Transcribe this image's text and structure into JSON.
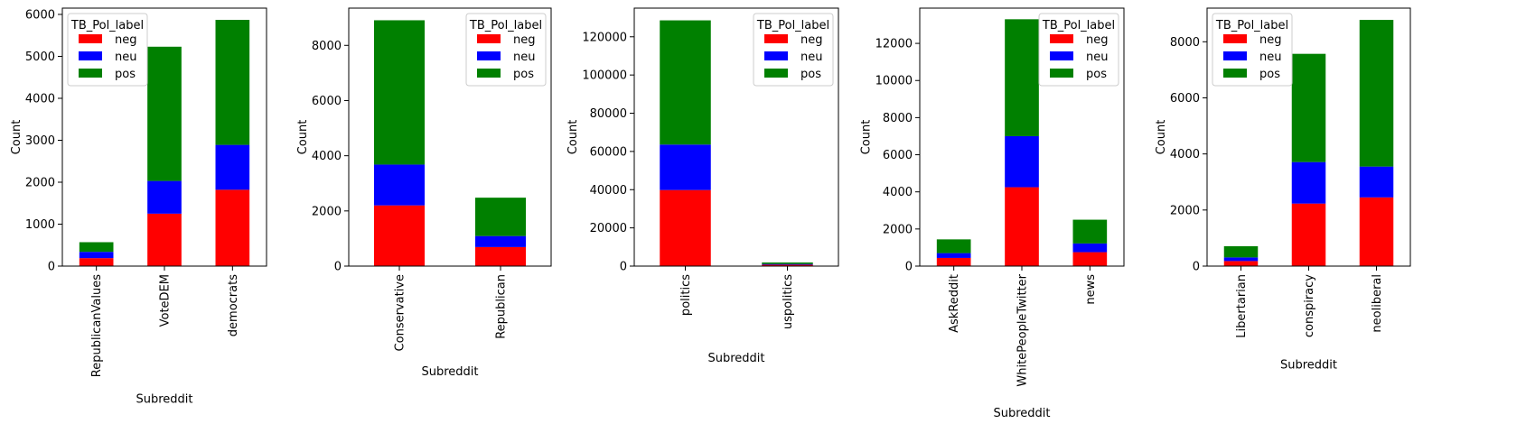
{
  "colors": {
    "neg": "#ff0000",
    "neu": "#0000ff",
    "pos": "#008000"
  },
  "chart_data": [
    {
      "type": "bar",
      "stacked": true,
      "categories": [
        "RepublicanValues",
        "VoteDEM",
        "democrats"
      ],
      "series": [
        {
          "name": "neg",
          "values": [
            190,
            1250,
            1820
          ]
        },
        {
          "name": "neu",
          "values": [
            150,
            780,
            1070
          ]
        },
        {
          "name": "pos",
          "values": [
            230,
            3200,
            2980
          ]
        }
      ],
      "xlabel": "Subreddit",
      "ylabel": "Count",
      "ylim": [
        0,
        6150
      ],
      "yticks": [
        0,
        1000,
        2000,
        3000,
        4000,
        5000,
        6000
      ],
      "legend_title": "TB_Pol_label",
      "legend_position": "upper-left"
    },
    {
      "type": "bar",
      "stacked": true,
      "categories": [
        "Conservative",
        "Republican"
      ],
      "series": [
        {
          "name": "neg",
          "values": [
            2200,
            690
          ]
        },
        {
          "name": "neu",
          "values": [
            1480,
            400
          ]
        },
        {
          "name": "pos",
          "values": [
            5230,
            1390
          ]
        }
      ],
      "xlabel": "Subreddit",
      "ylabel": "Count",
      "ylim": [
        0,
        9350
      ],
      "yticks": [
        0,
        2000,
        4000,
        6000,
        8000
      ],
      "legend_title": "TB_Pol_label",
      "legend_position": "upper-right"
    },
    {
      "type": "bar",
      "stacked": true,
      "categories": [
        "politics",
        "uspolitics"
      ],
      "series": [
        {
          "name": "neg",
          "values": [
            39800,
            700
          ]
        },
        {
          "name": "neu",
          "values": [
            23800,
            400
          ]
        },
        {
          "name": "pos",
          "values": [
            65000,
            800
          ]
        }
      ],
      "xlabel": "Subreddit",
      "ylabel": "Count",
      "ylim": [
        0,
        135000
      ],
      "yticks": [
        0,
        20000,
        40000,
        60000,
        80000,
        100000,
        120000
      ],
      "legend_title": "TB_Pol_label",
      "legend_position": "upper-right"
    },
    {
      "type": "bar",
      "stacked": true,
      "categories": [
        "AskReddit",
        "WhitePeopleTwitter",
        "news"
      ],
      "series": [
        {
          "name": "neg",
          "values": [
            440,
            4250,
            750
          ]
        },
        {
          "name": "neu",
          "values": [
            260,
            2750,
            470
          ]
        },
        {
          "name": "pos",
          "values": [
            740,
            6300,
            1280
          ]
        }
      ],
      "xlabel": "Subreddit",
      "ylabel": "Count",
      "ylim": [
        0,
        13900
      ],
      "yticks": [
        0,
        2000,
        4000,
        6000,
        8000,
        10000,
        12000
      ],
      "legend_title": "TB_Pol_label",
      "legend_position": "upper-right"
    },
    {
      "type": "bar",
      "stacked": true,
      "categories": [
        "Libertarian",
        "conspiracy",
        "neoliberal"
      ],
      "series": [
        {
          "name": "neg",
          "values": [
            180,
            2230,
            2450
          ]
        },
        {
          "name": "neu",
          "values": [
            130,
            1480,
            1100
          ]
        },
        {
          "name": "pos",
          "values": [
            400,
            3860,
            5230
          ]
        }
      ],
      "xlabel": "Subreddit",
      "ylabel": "Count",
      "ylim": [
        0,
        9200
      ],
      "yticks": [
        0,
        2000,
        4000,
        6000,
        8000
      ],
      "legend_title": "TB_Pol_label",
      "legend_position": "upper-left"
    }
  ]
}
